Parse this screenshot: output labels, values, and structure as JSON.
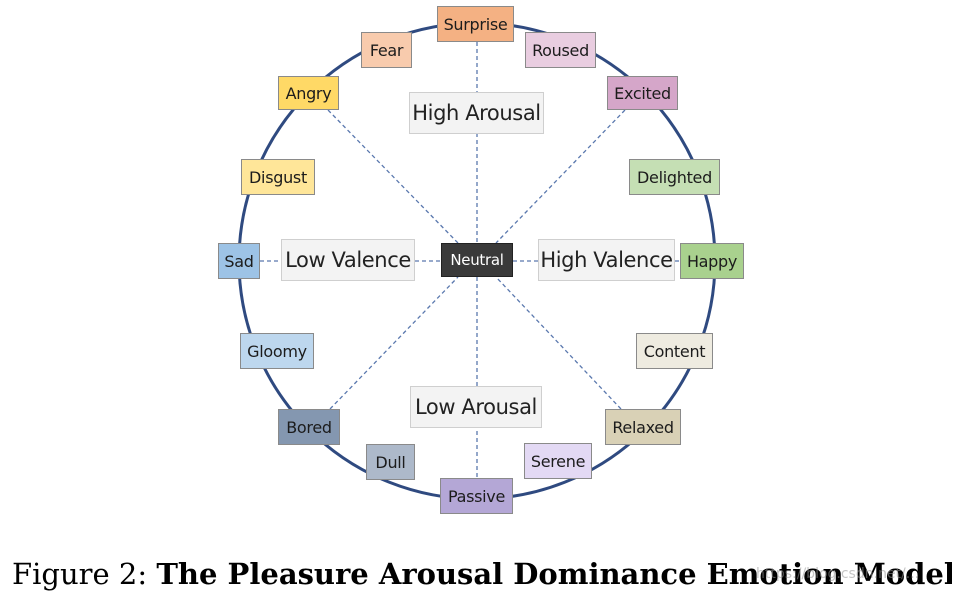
{
  "diagram": {
    "center_label": "Neutral",
    "axis_labels": {
      "high_arousal": "High Arousal",
      "low_arousal": "Low Arousal",
      "low_valence": "Low Valence",
      "high_valence": "High Valence"
    },
    "emotions": [
      {
        "id": "surprise",
        "label": "Surprise",
        "color": "#F4B183"
      },
      {
        "id": "roused",
        "label": "Roused",
        "color": "#E9CDE0"
      },
      {
        "id": "excited",
        "label": "Excited",
        "color": "#D5A6C9"
      },
      {
        "id": "delighted",
        "label": "Delighted",
        "color": "#C5DFB4"
      },
      {
        "id": "happy",
        "label": "Happy",
        "color": "#A9D18E"
      },
      {
        "id": "content",
        "label": "Content",
        "color": "#EEEBE0"
      },
      {
        "id": "relaxed",
        "label": "Relaxed",
        "color": "#D9D1B6"
      },
      {
        "id": "serene",
        "label": "Serene",
        "color": "#E3D9F4"
      },
      {
        "id": "passive",
        "label": "Passive",
        "color": "#B4A7D6"
      },
      {
        "id": "dull",
        "label": "Dull",
        "color": "#ADB9CA"
      },
      {
        "id": "bored",
        "label": "Bored",
        "color": "#8497B0"
      },
      {
        "id": "gloomy",
        "label": "Gloomy",
        "color": "#BDD7EE"
      },
      {
        "id": "sad",
        "label": "Sad",
        "color": "#9DC3E6"
      },
      {
        "id": "disgust",
        "label": "Disgust",
        "color": "#FFE699"
      },
      {
        "id": "angry",
        "label": "Angry",
        "color": "#FFD966"
      },
      {
        "id": "fear",
        "label": "Fear",
        "color": "#F8CBAD"
      }
    ],
    "colors": {
      "circle": "#2F4A80",
      "dashed_line": "#5A78AE",
      "neutral_bg": "#3A3A3A",
      "neutral_text": "#FFFFFF"
    }
  },
  "caption": {
    "prefix": "Figure 2: ",
    "title": "The Pleasure Arousal Dominance Emotion Model:"
  },
  "watermark": "https://blog.csdn.net/..."
}
